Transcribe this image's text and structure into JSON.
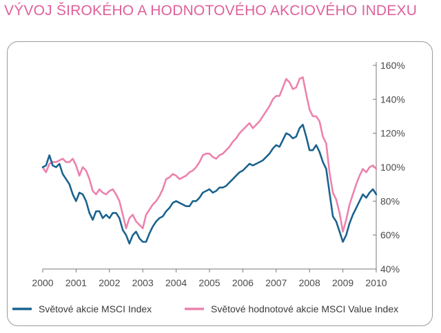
{
  "chart_data": {
    "type": "line",
    "title": "VÝVOJ ŠIROKÉHO A HODNOTOVÉHO AKCIOVÉHO INDEXU",
    "xlabel": "",
    "ylabel": "",
    "x_ticks": [
      "2000",
      "2001",
      "2002",
      "2003",
      "2004",
      "2005",
      "2006",
      "2007",
      "2008",
      "2009",
      "2010"
    ],
    "y_ticks": [
      "40%",
      "60%",
      "80%",
      "100%",
      "120%",
      "140%",
      "160%"
    ],
    "xlim": [
      2000,
      2010
    ],
    "ylim": [
      40,
      160
    ],
    "grid": false,
    "legend_position": "bottom",
    "colors": {
      "title": "#e0609a",
      "msci": "#1a628e",
      "value": "#ec82ad",
      "axis": "#777777"
    },
    "series": [
      {
        "name": "Světové akcie MSCI Index",
        "color": "#1a628e",
        "x": [
          2000.0,
          2000.1,
          2000.2,
          2000.3,
          2000.4,
          2000.5,
          2000.6,
          2000.7,
          2000.8,
          2000.9,
          2001.0,
          2001.1,
          2001.2,
          2001.3,
          2001.4,
          2001.5,
          2001.6,
          2001.7,
          2001.8,
          2001.9,
          2002.0,
          2002.1,
          2002.2,
          2002.3,
          2002.4,
          2002.5,
          2002.6,
          2002.7,
          2002.8,
          2002.9,
          2003.0,
          2003.1,
          2003.2,
          2003.3,
          2003.4,
          2003.5,
          2003.6,
          2003.7,
          2003.8,
          2003.9,
          2004.0,
          2004.1,
          2004.2,
          2004.3,
          2004.4,
          2004.5,
          2004.6,
          2004.7,
          2004.8,
          2004.9,
          2005.0,
          2005.1,
          2005.2,
          2005.3,
          2005.4,
          2005.5,
          2005.6,
          2005.7,
          2005.8,
          2005.9,
          2006.0,
          2006.1,
          2006.2,
          2006.3,
          2006.4,
          2006.5,
          2006.6,
          2006.7,
          2006.8,
          2006.9,
          2007.0,
          2007.1,
          2007.2,
          2007.3,
          2007.4,
          2007.5,
          2007.6,
          2007.7,
          2007.8,
          2007.9,
          2008.0,
          2008.1,
          2008.2,
          2008.3,
          2008.4,
          2008.5,
          2008.6,
          2008.7,
          2008.8,
          2008.9,
          2009.0,
          2009.1,
          2009.2,
          2009.3,
          2009.4,
          2009.5,
          2009.6,
          2009.7,
          2009.8,
          2009.9,
          2010.0
        ],
        "values": [
          100,
          101,
          107,
          101,
          100,
          102,
          96,
          93,
          90,
          84,
          80,
          85,
          84,
          80,
          73,
          69,
          74,
          74,
          70,
          72,
          70,
          73,
          73,
          70,
          63,
          60,
          55,
          60,
          62,
          58,
          56,
          56,
          61,
          65,
          68,
          70,
          71,
          74,
          76,
          79,
          80,
          79,
          78,
          77,
          77,
          80,
          80,
          82,
          85,
          86,
          87,
          85,
          86,
          88,
          88,
          89,
          91,
          93,
          95,
          97,
          98,
          100,
          102,
          101,
          102,
          103,
          104,
          106,
          108,
          111,
          113,
          112,
          116,
          120,
          119,
          117,
          118,
          123,
          125,
          118,
          110,
          110,
          113,
          109,
          103,
          99,
          85,
          71,
          68,
          62,
          56,
          60,
          67,
          72,
          76,
          80,
          84,
          82,
          85,
          87,
          84
        ]
      },
      {
        "name": "Světové hodnotové akcie MSCI Value Index",
        "color": "#ec82ad",
        "x": [
          2000.0,
          2000.1,
          2000.2,
          2000.3,
          2000.4,
          2000.5,
          2000.6,
          2000.7,
          2000.8,
          2000.9,
          2001.0,
          2001.1,
          2001.2,
          2001.3,
          2001.4,
          2001.5,
          2001.6,
          2001.7,
          2001.8,
          2001.9,
          2002.0,
          2002.1,
          2002.2,
          2002.3,
          2002.4,
          2002.5,
          2002.6,
          2002.7,
          2002.8,
          2002.9,
          2003.0,
          2003.1,
          2003.2,
          2003.3,
          2003.4,
          2003.5,
          2003.6,
          2003.7,
          2003.8,
          2003.9,
          2004.0,
          2004.1,
          2004.2,
          2004.3,
          2004.4,
          2004.5,
          2004.6,
          2004.7,
          2004.8,
          2004.9,
          2005.0,
          2005.1,
          2005.2,
          2005.3,
          2005.4,
          2005.5,
          2005.6,
          2005.7,
          2005.8,
          2005.9,
          2006.0,
          2006.1,
          2006.2,
          2006.3,
          2006.4,
          2006.5,
          2006.6,
          2006.7,
          2006.8,
          2006.9,
          2007.0,
          2007.1,
          2007.2,
          2007.3,
          2007.4,
          2007.5,
          2007.6,
          2007.7,
          2007.8,
          2007.9,
          2008.0,
          2008.1,
          2008.2,
          2008.3,
          2008.4,
          2008.5,
          2008.6,
          2008.7,
          2008.8,
          2008.9,
          2009.0,
          2009.1,
          2009.2,
          2009.3,
          2009.4,
          2009.5,
          2009.6,
          2009.7,
          2009.8,
          2009.9,
          2010.0
        ],
        "values": [
          100,
          97,
          102,
          103,
          103,
          104,
          105,
          103,
          103,
          105,
          101,
          95,
          100,
          98,
          93,
          86,
          84,
          87,
          85,
          84,
          86,
          87,
          84,
          80,
          72,
          64,
          70,
          72,
          68,
          66,
          64,
          72,
          75,
          78,
          80,
          83,
          87,
          93,
          94,
          96,
          95,
          93,
          94,
          95,
          97,
          98,
          100,
          103,
          107,
          108,
          108,
          106,
          105,
          107,
          108,
          110,
          112,
          115,
          117,
          120,
          122,
          124,
          126,
          123,
          125,
          127,
          130,
          133,
          136,
          140,
          142,
          142,
          147,
          152,
          150,
          146,
          147,
          152,
          153,
          143,
          134,
          130,
          130,
          127,
          118,
          114,
          97,
          85,
          81,
          73,
          62,
          69,
          78,
          84,
          90,
          95,
          99,
          97,
          100,
          101,
          99
        ]
      }
    ]
  }
}
